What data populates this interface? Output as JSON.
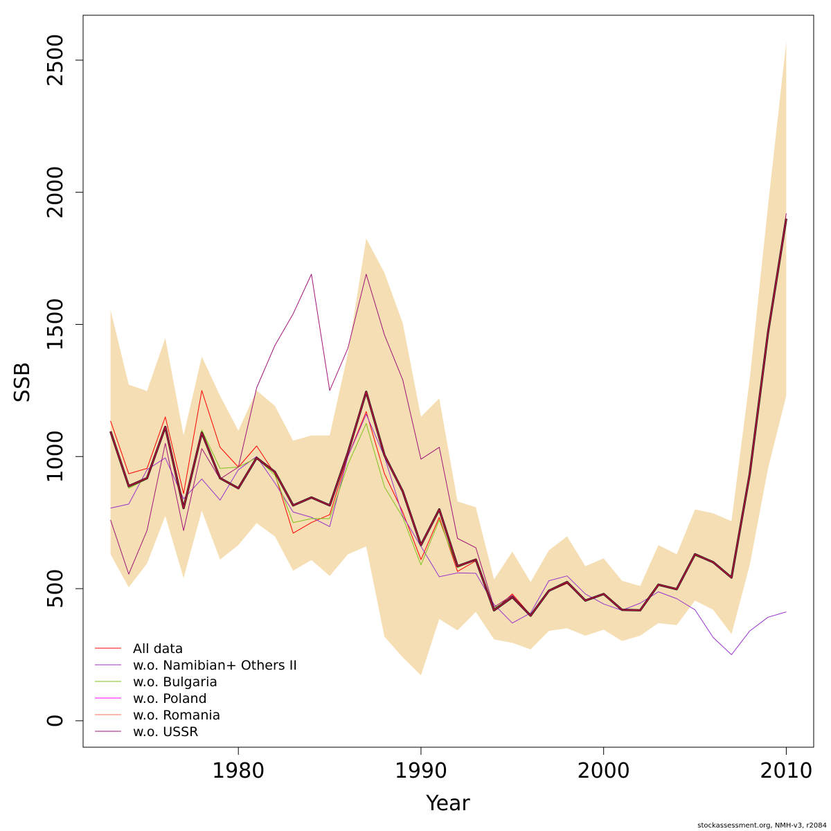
{
  "chart_data": {
    "type": "line",
    "title": "",
    "xlabel": "Year",
    "ylabel": "SSB",
    "xlim": [
      1971.5,
      2011.5
    ],
    "ylim": [
      -100,
      2670
    ],
    "x_ticks": [
      1980,
      1990,
      2000,
      2010
    ],
    "y_ticks": [
      0,
      500,
      1000,
      1500,
      2000,
      2500
    ],
    "grid": false,
    "legend_position": "bottom-left",
    "x": [
      1973,
      1974,
      1975,
      1976,
      1977,
      1978,
      1979,
      1980,
      1981,
      1982,
      1983,
      1984,
      1985,
      1986,
      1987,
      1988,
      1989,
      1990,
      1991,
      1992,
      1993,
      1994,
      1995,
      1996,
      1997,
      1998,
      1999,
      2000,
      2001,
      2002,
      2003,
      2004,
      2005,
      2006,
      2007,
      2008,
      2009,
      2010
    ],
    "confidence_band": {
      "color": "#F5DEB3",
      "upper": [
        1555,
        1272,
        1248,
        1448,
        1080,
        1378,
        1230,
        1098,
        1250,
        1192,
        1060,
        1080,
        1080,
        1390,
        1825,
        1695,
        1505,
        1150,
        1220,
        830,
        808,
        535,
        640,
        525,
        645,
        698,
        585,
        615,
        530,
        510,
        665,
        630,
        800,
        785,
        755,
        1295,
        1950,
        2570
      ],
      "lower": [
        630,
        505,
        595,
        775,
        540,
        795,
        610,
        665,
        748,
        698,
        568,
        608,
        548,
        630,
        660,
        318,
        240,
        172,
        385,
        342,
        412,
        308,
        295,
        270,
        340,
        350,
        322,
        345,
        302,
        322,
        370,
        362,
        455,
        420,
        328,
        590,
        955,
        1230
      ]
    },
    "series": [
      {
        "name": "All data",
        "color": "#FF0000",
        "width": 1,
        "values": [
          1135,
          935,
          955,
          1150,
          860,
          1250,
          1035,
          960,
          1040,
          935,
          710,
          750,
          780,
          1000,
          1170,
          935,
          790,
          610,
          770,
          565,
          605,
          418,
          480,
          400,
          490,
          520,
          455,
          480,
          420,
          418,
          515,
          498,
          625,
          600,
          540,
          935,
          1470,
          1895
        ]
      },
      {
        "name": "w.o. Namibian+ Others II",
        "color": "#9932CC",
        "width": 1,
        "values": [
          805,
          820,
          950,
          995,
          840,
          915,
          835,
          950,
          1000,
          900,
          790,
          770,
          735,
          1000,
          1160,
          1000,
          775,
          660,
          545,
          560,
          558,
          440,
          370,
          408,
          530,
          548,
          480,
          442,
          418,
          445,
          488,
          462,
          420,
          315,
          250,
          340,
          392,
          412
        ]
      },
      {
        "name": "w.o. Bulgaria",
        "color": "#7FC31C",
        "width": 1,
        "values": [
          1095,
          880,
          915,
          1110,
          810,
          1100,
          955,
          960,
          995,
          930,
          750,
          765,
          765,
          970,
          1125,
          885,
          770,
          590,
          760,
          580,
          610,
          425,
          470,
          400,
          495,
          525,
          455,
          480,
          418,
          418,
          515,
          495,
          625,
          600,
          540,
          935,
          1470,
          1895
        ]
      },
      {
        "name": "w.o. Poland",
        "color": "#FF00FF",
        "width": 1,
        "values": [
          1095,
          888,
          918,
          1112,
          805,
          1090,
          918,
          880,
          995,
          942,
          815,
          845,
          815,
          1015,
          1245,
          1005,
          868,
          665,
          800,
          585,
          610,
          418,
          468,
          398,
          492,
          525,
          455,
          480,
          420,
          418,
          515,
          498,
          630,
          600,
          542,
          935,
          1470,
          1900
        ]
      },
      {
        "name": "w.o. Romania",
        "color": "#FA6E5A",
        "width": 1,
        "values": [
          1095,
          888,
          918,
          1112,
          805,
          1090,
          918,
          880,
          995,
          942,
          815,
          845,
          815,
          1015,
          1245,
          1005,
          868,
          665,
          800,
          585,
          610,
          418,
          468,
          398,
          492,
          525,
          455,
          480,
          420,
          418,
          515,
          498,
          630,
          600,
          542,
          935,
          1470,
          1900
        ]
      },
      {
        "name": "w.o. USSR",
        "color": "#A01478",
        "width": 1,
        "values": [
          760,
          555,
          720,
          1050,
          720,
          1030,
          915,
          960,
          1260,
          1420,
          1540,
          1690,
          1250,
          1410,
          1690,
          1460,
          1290,
          990,
          1035,
          690,
          655,
          430,
          475,
          395,
          490,
          525,
          455,
          480,
          420,
          418,
          515,
          498,
          630,
          600,
          542,
          935,
          1470,
          1920
        ]
      },
      {
        "name": "",
        "color": "#1a1a1a",
        "width": 3.2,
        "values": [
          1095,
          888,
          918,
          1112,
          805,
          1090,
          918,
          880,
          995,
          942,
          815,
          845,
          815,
          1015,
          1245,
          1005,
          868,
          665,
          800,
          585,
          610,
          418,
          468,
          398,
          492,
          525,
          455,
          480,
          420,
          418,
          515,
          498,
          630,
          600,
          542,
          935,
          1470,
          1900
        ]
      },
      {
        "name": "",
        "color": "#B0103A",
        "width": 1.8,
        "values": [
          1095,
          888,
          918,
          1112,
          805,
          1090,
          918,
          880,
          995,
          942,
          815,
          845,
          815,
          1015,
          1245,
          1005,
          868,
          665,
          800,
          585,
          610,
          418,
          468,
          398,
          492,
          525,
          455,
          480,
          420,
          418,
          515,
          498,
          630,
          600,
          542,
          935,
          1470,
          1900
        ]
      }
    ]
  },
  "footnote": "stockassessment.org, NMH-v3, r2084"
}
